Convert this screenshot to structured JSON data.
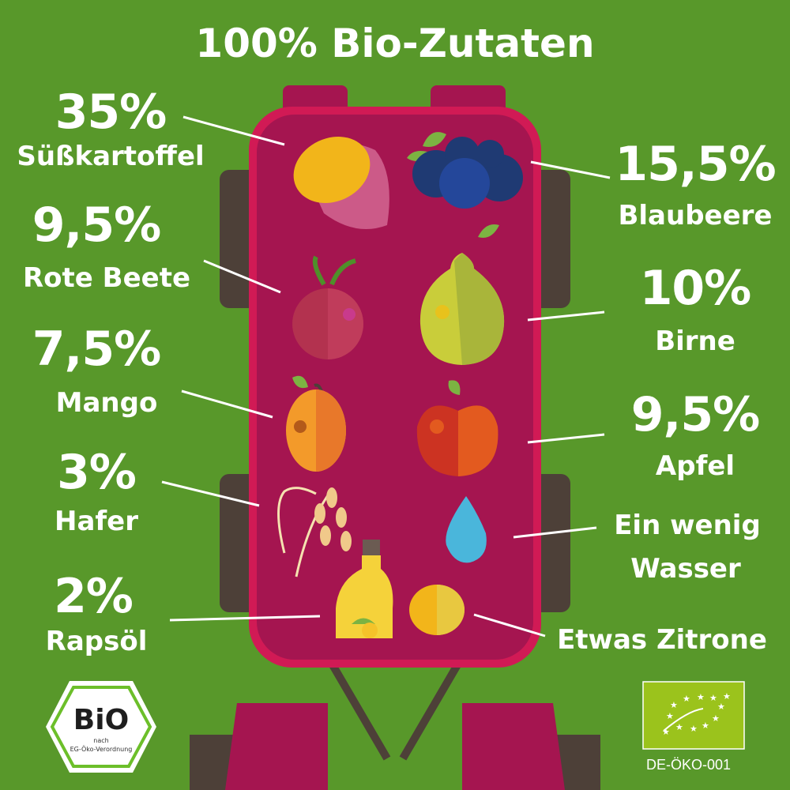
{
  "title": "100% Bio-Zutaten",
  "ingredients_left": [
    {
      "percent": "35%",
      "name": "Süßkartoffel"
    },
    {
      "percent": "9,5%",
      "name": "Rote Beete"
    },
    {
      "percent": "7,5%",
      "name": "Mango"
    },
    {
      "percent": "3%",
      "name": "Hafer"
    },
    {
      "percent": "2%",
      "name": "Rapsöl"
    }
  ],
  "ingredients_right": [
    {
      "percent": "15,5%",
      "name": "Blaubeere"
    },
    {
      "percent": "10%",
      "name": "Birne"
    },
    {
      "percent": "9,5%",
      "name": "Apfel"
    },
    {
      "line1": "Ein wenig",
      "line2": "Wasser"
    },
    {
      "name": "Etwas Zitrone"
    }
  ],
  "logos": {
    "bio_seal": {
      "word": "BiO",
      "line1": "nach",
      "line2": "EG-Öko-Verordnung"
    },
    "eu_organic": {
      "code": "DE-ÖKO-001"
    }
  },
  "colors": {
    "background": "#58982a",
    "body": "#a51550",
    "body_border": "#d11a55",
    "dark": "#4d4038"
  }
}
